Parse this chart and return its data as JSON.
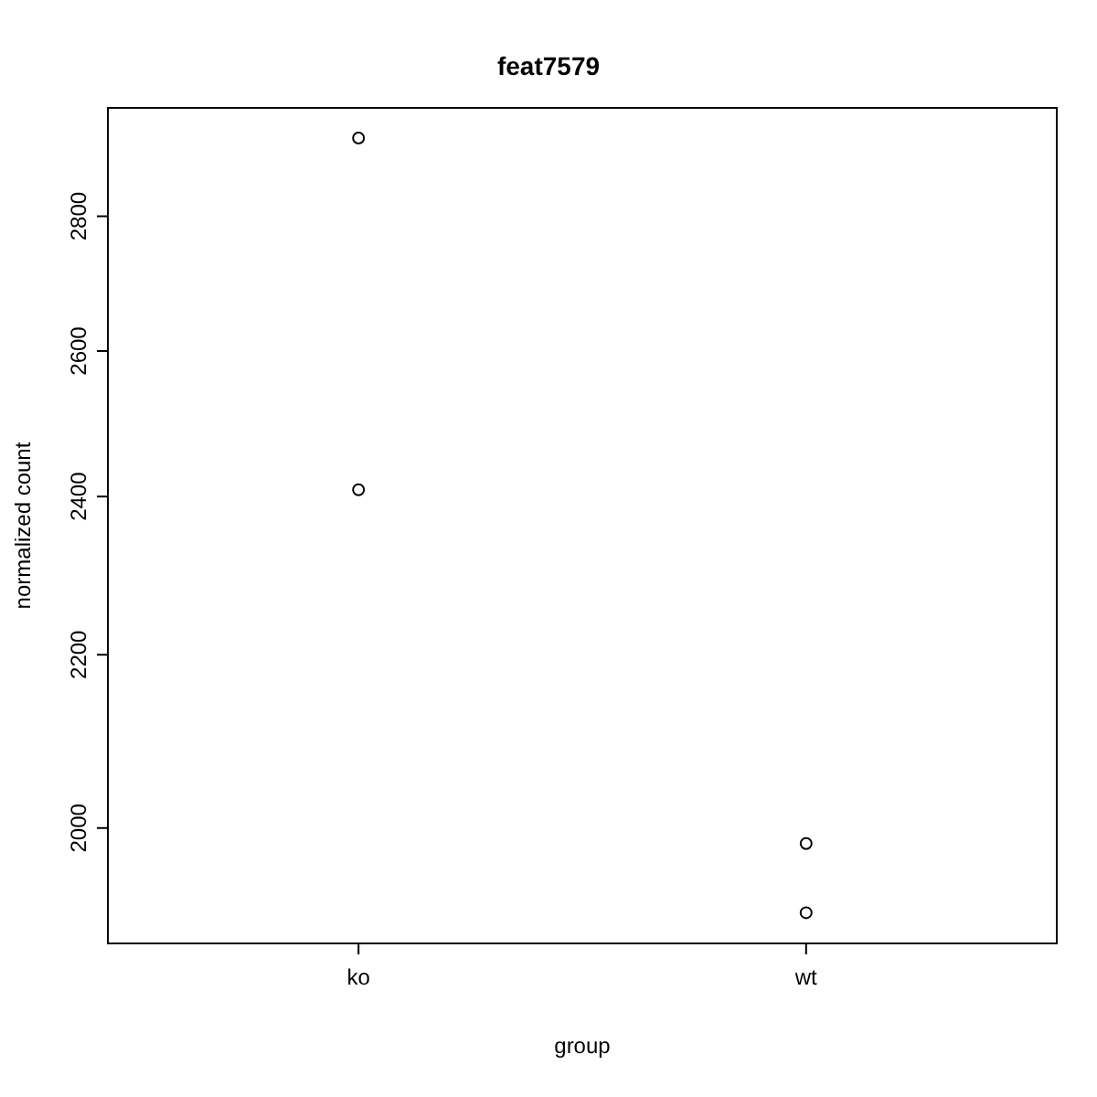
{
  "chart_data": {
    "type": "scatter",
    "title": "feat7579",
    "xlabel": "group",
    "ylabel": "normalized count",
    "categories": [
      "ko",
      "wt"
    ],
    "series": [
      {
        "color": "#000000",
        "x": [
          "ko",
          "ko",
          "wt",
          "wt"
        ],
        "values": [
          2923,
          2409,
          1983,
          1909
        ]
      }
    ],
    "ylim": [
      1877,
      2972
    ],
    "yticks": [
      2000,
      2200,
      2400,
      2600,
      2800
    ],
    "log": "y",
    "marker": "circle",
    "grid": false,
    "legend": false
  }
}
